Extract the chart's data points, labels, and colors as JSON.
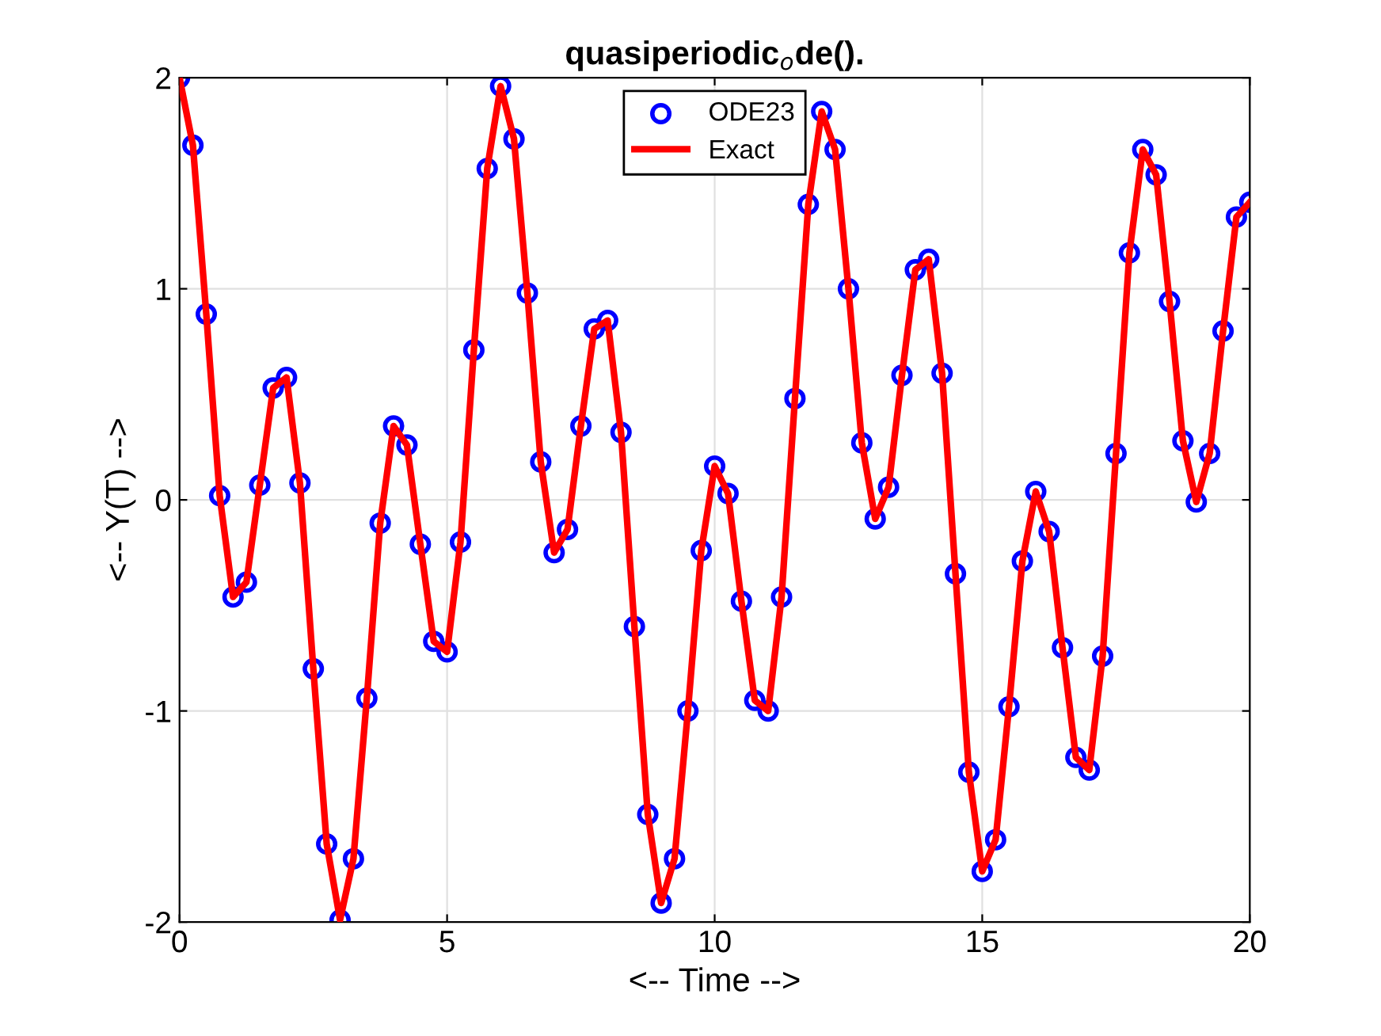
{
  "chart_data": {
    "type": "line",
    "title": "quasiperiodic$_{o}$de().",
    "xlabel": "<-- Time -->",
    "ylabel": "<-- Y(T) -->",
    "x": [
      0,
      0.25,
      0.5,
      0.75,
      1,
      1.25,
      1.5,
      1.75,
      2,
      2.25,
      2.5,
      2.75,
      3,
      3.25,
      3.5,
      3.75,
      4,
      4.25,
      4.5,
      4.75,
      5,
      5.25,
      5.5,
      5.75,
      6,
      6.25,
      6.5,
      6.75,
      7,
      7.25,
      7.5,
      7.75,
      8,
      8.25,
      8.5,
      8.75,
      9,
      9.25,
      9.5,
      9.75,
      10,
      10.25,
      10.5,
      10.75,
      11,
      11.25,
      11.5,
      11.75,
      12,
      12.25,
      12.5,
      12.75,
      13,
      13.25,
      13.5,
      13.75,
      14,
      14.25,
      14.5,
      14.75,
      15,
      15.25,
      15.5,
      15.75,
      16,
      16.25,
      16.5,
      16.75,
      17,
      17.25,
      17.5,
      17.75,
      18,
      18.25,
      18.5,
      18.75,
      19,
      19.25,
      19.5,
      19.75,
      20
    ],
    "series": [
      {
        "name": "ODE23",
        "type": "scatter",
        "marker": "circle",
        "color": "#0000ff",
        "values": [
          2,
          1.68,
          0.88,
          0.02,
          -0.46,
          -0.39,
          0.07,
          0.53,
          0.58,
          0.08,
          -0.8,
          -1.63,
          -1.99,
          -1.7,
          -0.94,
          -0.11,
          0.35,
          0.26,
          -0.21,
          -0.67,
          -0.72,
          -0.2,
          0.71,
          1.57,
          1.96,
          1.71,
          0.98,
          0.18,
          -0.25,
          -0.14,
          0.35,
          0.81,
          0.85,
          0.32,
          -0.6,
          -1.49,
          -1.91,
          -1.7,
          -1,
          -0.24,
          0.16,
          0.03,
          -0.48,
          -0.95,
          -1,
          -0.46,
          0.48,
          1.4,
          1.84,
          1.66,
          1,
          0.27,
          -0.09,
          0.06,
          0.59,
          1.09,
          1.14,
          0.6,
          -0.35,
          -1.29,
          -1.76,
          -1.61,
          -0.98,
          -0.29,
          0.04,
          -0.15,
          -0.7,
          -1.22,
          -1.28,
          -0.74,
          0.22,
          1.17,
          1.66,
          1.54,
          0.94,
          0.28,
          -0.01,
          0.22,
          0.8,
          1.34,
          1.41
        ]
      },
      {
        "name": "Exact",
        "marker": "none",
        "color": "#ff0000",
        "values": [
          2,
          1.68,
          0.88,
          0.02,
          -0.46,
          -0.39,
          0.07,
          0.53,
          0.58,
          0.08,
          -0.8,
          -1.63,
          -1.99,
          -1.7,
          -0.94,
          -0.11,
          0.35,
          0.26,
          -0.21,
          -0.67,
          -0.72,
          -0.2,
          0.71,
          1.57,
          1.96,
          1.71,
          0.98,
          0.18,
          -0.25,
          -0.14,
          0.35,
          0.81,
          0.85,
          0.32,
          -0.6,
          -1.49,
          -1.91,
          -1.7,
          -1,
          -0.24,
          0.16,
          0.03,
          -0.48,
          -0.95,
          -1,
          -0.46,
          0.48,
          1.4,
          1.84,
          1.66,
          1,
          0.27,
          -0.09,
          0.06,
          0.59,
          1.09,
          1.14,
          0.6,
          -0.35,
          -1.29,
          -1.76,
          -1.61,
          -0.98,
          -0.29,
          0.04,
          -0.15,
          -0.7,
          -1.22,
          -1.28,
          -0.74,
          0.22,
          1.17,
          1.66,
          1.54,
          0.94,
          0.28,
          -0.01,
          0.22,
          0.8,
          1.34,
          1.41
        ]
      }
    ],
    "xlim": [
      0,
      20
    ],
    "xticks": [
      0,
      5,
      10,
      15,
      20
    ],
    "ylim": [
      -2,
      2
    ],
    "yticks": [
      -2,
      -1,
      0,
      1,
      2
    ],
    "grid": true,
    "legend": "top"
  }
}
